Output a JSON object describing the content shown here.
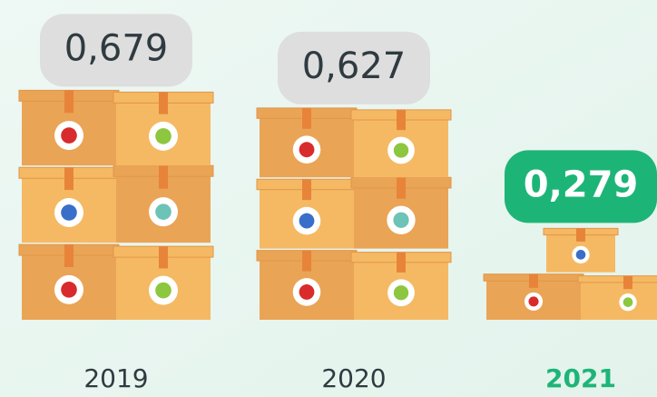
{
  "chart_data": {
    "type": "pictogram",
    "categories": [
      "2019",
      "2020",
      "2021"
    ],
    "values": [
      0.679,
      0.627,
      0.279
    ],
    "value_labels": [
      "0,679",
      "0,627",
      "0,279"
    ],
    "color": "#f5b963",
    "label_colors": [
      "#dedede",
      "#dedede",
      "#1db577"
    ],
    "value_text_colors": [
      "#2f3b40",
      "#2f3b40",
      "#ffffff"
    ],
    "category_colors": [
      "#2f3b40",
      "#2f3b40",
      "#1db577"
    ]
  }
}
